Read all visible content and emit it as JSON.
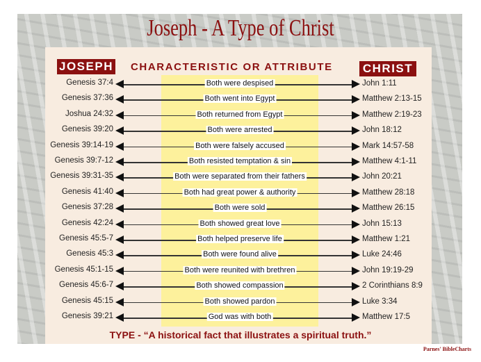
{
  "title": "Joseph - A Type of Christ",
  "headers": {
    "joseph": "JOSEPH",
    "characteristic": "CHARACTERISTIC OR ATTRIBUTE",
    "christ": "CHRIST"
  },
  "rows": [
    {
      "joseph": "Genesis 37:4",
      "attribute": "Both were despised",
      "christ": "John 1:11"
    },
    {
      "joseph": "Genesis 37:36",
      "attribute": "Both went into Egypt",
      "christ": "Matthew 2:13-15"
    },
    {
      "joseph": "Joshua 24:32",
      "attribute": "Both returned from Egypt",
      "christ": "Matthew 2:19-23"
    },
    {
      "joseph": "Genesis 39:20",
      "attribute": "Both were arrested",
      "christ": "John 18:12"
    },
    {
      "joseph": "Genesis 39:14-19",
      "attribute": "Both were falsely accused",
      "christ": "Mark 14:57-58"
    },
    {
      "joseph": "Genesis 39:7-12",
      "attribute": "Both resisted temptation & sin",
      "christ": "Matthew 4:1-11"
    },
    {
      "joseph": "Genesis 39:31-35",
      "attribute": "Both were separated from their fathers",
      "christ": "John 20:21"
    },
    {
      "joseph": "Genesis 41:40",
      "attribute": "Both had great power & authority",
      "christ": "Matthew 28:18"
    },
    {
      "joseph": "Genesis 37:28",
      "attribute": "Both were sold",
      "christ": "Matthew 26:15"
    },
    {
      "joseph": "Genesis 42:24",
      "attribute": "Both showed great love",
      "christ": "John 15:13"
    },
    {
      "joseph": "Genesis 45:5-7",
      "attribute": "Both helped preserve life",
      "christ": "Matthew 1:21"
    },
    {
      "joseph": "Genesis 45:3",
      "attribute": "Both were found alive",
      "christ": "Luke 24:46"
    },
    {
      "joseph": "Genesis 45:1-15",
      "attribute": "Both were reunited with brethren",
      "christ": "John 19:19-29"
    },
    {
      "joseph": "Genesis 45:6-7",
      "attribute": "Both showed compassion",
      "christ": "2 Corinthians 8:9"
    },
    {
      "joseph": "Genesis 45:15",
      "attribute": "Both showed pardon",
      "christ": "Luke 3:34"
    },
    {
      "joseph": "Genesis 39:21",
      "attribute": "God was with both",
      "christ": "Matthew 17:5"
    }
  ],
  "footer": "TYPE - “A historical fact that illustrates a spiritual truth.”",
  "credit": "Parnes' BibleCharts",
  "colors": {
    "accent": "#8b1010",
    "panel": "#f8ece0",
    "highlight": "#fdf19c",
    "frame": "#c9cbc6"
  }
}
